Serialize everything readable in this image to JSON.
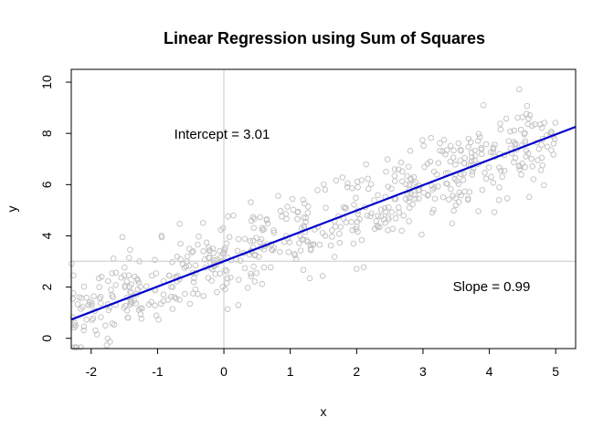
{
  "chart_data": {
    "type": "scatter",
    "title": "Linear Regression using Sum of Squares",
    "xlabel": "x",
    "ylabel": "y",
    "xlim": [
      -2.3,
      5.3
    ],
    "ylim": [
      -0.4,
      10.5
    ],
    "x_ticks": [
      -2,
      -1,
      0,
      1,
      2,
      3,
      4,
      5
    ],
    "y_ticks": [
      0,
      2,
      4,
      6,
      8,
      10
    ],
    "grid": false,
    "reference_lines": {
      "vertical_x": 0,
      "horizontal_y": 3.01
    },
    "regression_line": {
      "intercept": 3.01,
      "slope": 0.99
    },
    "annotations": {
      "intercept": "Intercept = 3.01",
      "slope": "Slope = 0.99"
    },
    "scatter": {
      "point_count": 600,
      "x_range": [
        -2.3,
        5.0
      ],
      "noise_sd": 0.8
    },
    "colors": {
      "points": "#c0c0c0",
      "line": "#0000cc",
      "refline": "#c8c8c8",
      "frame": "#000000"
    }
  }
}
